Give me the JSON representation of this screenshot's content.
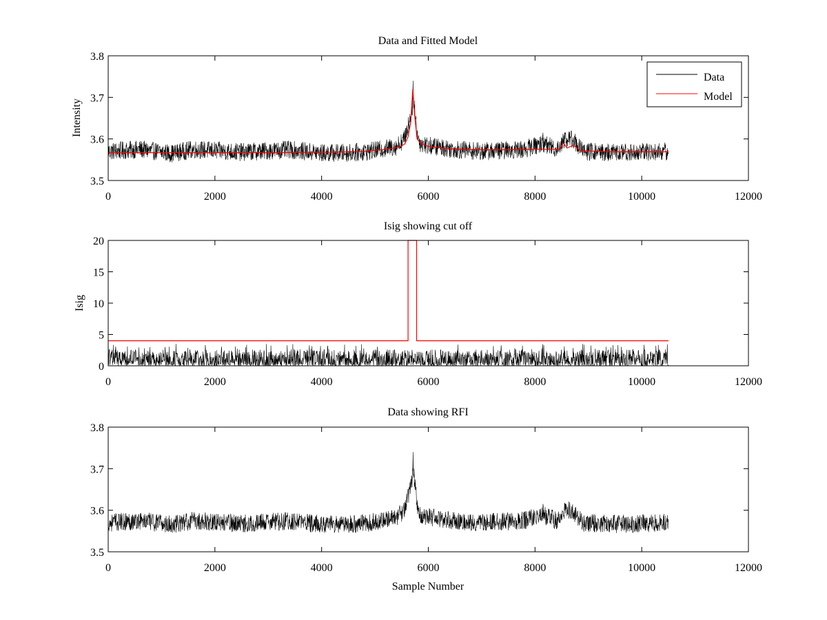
{
  "colors": {
    "data": "#000000",
    "model": "#ff0000",
    "axes": "#000000",
    "background": "#ffffff"
  },
  "chart_data": [
    {
      "id": "top",
      "type": "line",
      "title": "Data and Fitted Model",
      "xlabel": "",
      "ylabel": "Intensity",
      "xlim": [
        0,
        12000
      ],
      "ylim": [
        3.5,
        3.8
      ],
      "xticks": [
        0,
        2000,
        4000,
        6000,
        8000,
        10000,
        12000
      ],
      "yticks": [
        3.5,
        3.6,
        3.7,
        3.8
      ],
      "ytick_labels": [
        "3.5",
        "3.6",
        "3.7",
        "3.8"
      ],
      "grid": false,
      "legend": {
        "position": "top-right",
        "entries": [
          "Data",
          "Model"
        ]
      },
      "series": [
        {
          "name": "Data",
          "kind": "noisy",
          "x_range": [
            0,
            10500
          ],
          "noise_amplitude": 0.022,
          "baseline": [
            [
              0,
              3.57
            ],
            [
              600,
              3.575
            ],
            [
              1200,
              3.565
            ],
            [
              1600,
              3.575
            ],
            [
              2500,
              3.568
            ],
            [
              3400,
              3.574
            ],
            [
              4000,
              3.566
            ],
            [
              4600,
              3.567
            ],
            [
              5000,
              3.572
            ],
            [
              5400,
              3.582
            ],
            [
              5550,
              3.6
            ],
            [
              5630,
              3.635
            ],
            [
              5690,
              3.665
            ],
            [
              5720,
              3.7
            ],
            [
              5760,
              3.65
            ],
            [
              5800,
              3.605
            ],
            [
              5850,
              3.59
            ],
            [
              6000,
              3.584
            ],
            [
              6500,
              3.575
            ],
            [
              7000,
              3.57
            ],
            [
              7800,
              3.575
            ],
            [
              8150,
              3.59
            ],
            [
              8400,
              3.575
            ],
            [
              8560,
              3.6
            ],
            [
              8700,
              3.6
            ],
            [
              8900,
              3.57
            ],
            [
              9500,
              3.567
            ],
            [
              10500,
              3.57
            ]
          ],
          "spikes": [
            [
              5715,
              3.74
            ],
            [
              8560,
              3.615
            ],
            [
              8150,
              3.615
            ]
          ]
        },
        {
          "name": "Model",
          "kind": "line",
          "points": [
            [
              0,
              3.567
            ],
            [
              3000,
              3.567
            ],
            [
              4200,
              3.568
            ],
            [
              4800,
              3.57
            ],
            [
              5200,
              3.575
            ],
            [
              5450,
              3.58
            ],
            [
              5560,
              3.588
            ],
            [
              5620,
              3.605
            ],
            [
              5670,
              3.64
            ],
            [
              5710,
              3.72
            ],
            [
              5740,
              3.66
            ],
            [
              5790,
              3.6
            ],
            [
              5850,
              3.59
            ],
            [
              6000,
              3.582
            ],
            [
              6400,
              3.576
            ],
            [
              7200,
              3.574
            ],
            [
              8000,
              3.575
            ],
            [
              8450,
              3.575
            ],
            [
              8530,
              3.59
            ],
            [
              8600,
              3.578
            ],
            [
              8720,
              3.585
            ],
            [
              8850,
              3.572
            ],
            [
              9500,
              3.569
            ],
            [
              10500,
              3.569
            ]
          ]
        }
      ]
    },
    {
      "id": "middle",
      "type": "line",
      "title": "Isig showing cut off",
      "xlabel": "",
      "ylabel": "Isig",
      "xlim": [
        0,
        12000
      ],
      "ylim": [
        0,
        20
      ],
      "xticks": [
        0,
        2000,
        4000,
        6000,
        8000,
        10000,
        12000
      ],
      "yticks": [
        0,
        5,
        10,
        15,
        20
      ],
      "ytick_labels": [
        "0",
        "5",
        "10",
        "15",
        "20"
      ],
      "grid": false,
      "series": [
        {
          "name": "Isig",
          "kind": "noisy-positive",
          "x_range": [
            0,
            10500
          ],
          "max_value": 3.5
        },
        {
          "name": "Cut off",
          "kind": "line",
          "points": [
            [
              0,
              4
            ],
            [
              5620,
              4
            ],
            [
              5620,
              20
            ],
            [
              5780,
              20
            ],
            [
              5780,
              4
            ],
            [
              10500,
              4
            ]
          ]
        }
      ]
    },
    {
      "id": "bottom",
      "type": "line",
      "title": "Data showing RFI",
      "xlabel": "Sample Number",
      "ylabel": "",
      "xlim": [
        0,
        12000
      ],
      "ylim": [
        3.5,
        3.8
      ],
      "xticks": [
        0,
        2000,
        4000,
        6000,
        8000,
        10000,
        12000
      ],
      "yticks": [
        3.5,
        3.6,
        3.7,
        3.8
      ],
      "ytick_labels": [
        "3.5",
        "3.6",
        "3.7",
        "3.8"
      ],
      "grid": false,
      "series": [
        {
          "name": "Data",
          "kind": "noisy",
          "x_range": [
            0,
            10500
          ],
          "noise_amplitude": 0.022,
          "baseline": [
            [
              0,
              3.57
            ],
            [
              600,
              3.575
            ],
            [
              1200,
              3.565
            ],
            [
              1600,
              3.575
            ],
            [
              2500,
              3.568
            ],
            [
              3400,
              3.574
            ],
            [
              4000,
              3.566
            ],
            [
              4600,
              3.567
            ],
            [
              5000,
              3.572
            ],
            [
              5400,
              3.582
            ],
            [
              5550,
              3.6
            ],
            [
              5630,
              3.635
            ],
            [
              5690,
              3.665
            ],
            [
              5720,
              3.7
            ],
            [
              5760,
              3.65
            ],
            [
              5800,
              3.605
            ],
            [
              5850,
              3.59
            ],
            [
              6000,
              3.584
            ],
            [
              6500,
              3.575
            ],
            [
              7000,
              3.57
            ],
            [
              7800,
              3.575
            ],
            [
              8150,
              3.59
            ],
            [
              8400,
              3.575
            ],
            [
              8560,
              3.6
            ],
            [
              8700,
              3.6
            ],
            [
              8900,
              3.57
            ],
            [
              9500,
              3.567
            ],
            [
              10500,
              3.57
            ]
          ],
          "spikes": [
            [
              5715,
              3.74
            ],
            [
              8560,
              3.615
            ],
            [
              8150,
              3.615
            ]
          ]
        }
      ]
    }
  ]
}
